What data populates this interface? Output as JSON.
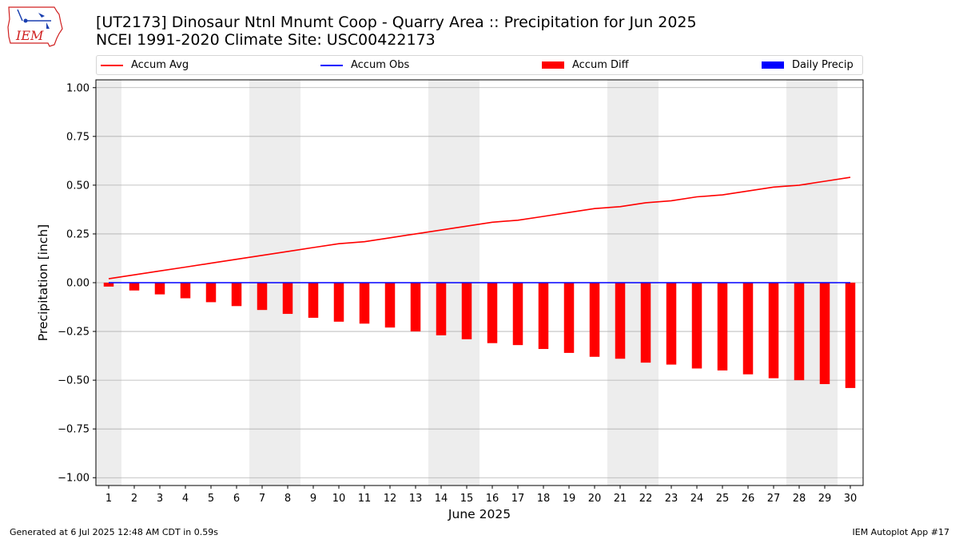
{
  "header": {
    "logo_text": "IEM",
    "title_line1": "[UT2173] Dinosaur Ntnl Mnumt Coop - Quarry Area :: Precipitation for Jun 2025",
    "title_line2": "NCEI 1991-2020 Climate Site: USC00422173"
  },
  "legend": {
    "items": [
      {
        "label": "Accum Avg",
        "kind": "line",
        "color": "#ff0000"
      },
      {
        "label": "Accum Obs",
        "kind": "line",
        "color": "#0000ff"
      },
      {
        "label": "Accum Diff",
        "kind": "patch",
        "color": "#ff0000"
      },
      {
        "label": "Daily Precip",
        "kind": "patch",
        "color": "#0000ff"
      }
    ],
    "placement": "top, above plot, horizontal"
  },
  "footer": {
    "left": "Generated at 6 Jul 2025 12:48 AM CDT in 0.59s",
    "right": "IEM Autoplot App #17"
  },
  "chart_data": {
    "type": "bar",
    "title": "[UT2173] Dinosaur Ntnl Mnumt Coop - Quarry Area :: Precipitation for Jun 2025",
    "subtitle": "NCEI 1991-2020 Climate Site: USC00422173",
    "xlabel": "June 2025",
    "ylabel": "Precipitation [inch]",
    "x": [
      1,
      2,
      3,
      4,
      5,
      6,
      7,
      8,
      9,
      10,
      11,
      12,
      13,
      14,
      15,
      16,
      17,
      18,
      19,
      20,
      21,
      22,
      23,
      24,
      25,
      26,
      27,
      28,
      29,
      30
    ],
    "ylim": [
      -1.04,
      1.04
    ],
    "yticks": [
      "1.00",
      "0.75",
      "0.50",
      "0.25",
      "0.00",
      "-0.25",
      "-0.50",
      "-0.75",
      "-1.00"
    ],
    "ytick_values": [
      1.0,
      0.75,
      0.5,
      0.25,
      0.0,
      -0.25,
      -0.5,
      -0.75,
      -1.0
    ],
    "grid": "horizontal",
    "weekend_shading": [
      [
        1,
        1
      ],
      [
        7,
        8
      ],
      [
        14,
        15
      ],
      [
        21,
        22
      ],
      [
        28,
        29
      ]
    ],
    "series": [
      {
        "name": "Accum Avg",
        "kind": "line",
        "color": "#ff0000",
        "values": [
          0.02,
          0.04,
          0.06,
          0.08,
          0.1,
          0.12,
          0.14,
          0.16,
          0.18,
          0.2,
          0.21,
          0.23,
          0.25,
          0.27,
          0.29,
          0.31,
          0.32,
          0.34,
          0.36,
          0.38,
          0.39,
          0.41,
          0.42,
          0.44,
          0.45,
          0.47,
          0.49,
          0.5,
          0.52,
          0.54
        ]
      },
      {
        "name": "Accum Obs",
        "kind": "line",
        "color": "#0000ff",
        "values": [
          0,
          0,
          0,
          0,
          0,
          0,
          0,
          0,
          0,
          0,
          0,
          0,
          0,
          0,
          0,
          0,
          0,
          0,
          0,
          0,
          0,
          0,
          0,
          0,
          0,
          0,
          0,
          0,
          0,
          0
        ]
      },
      {
        "name": "Accum Diff",
        "kind": "bar",
        "color": "#ff0000",
        "values": [
          -0.02,
          -0.04,
          -0.06,
          -0.08,
          -0.1,
          -0.12,
          -0.14,
          -0.16,
          -0.18,
          -0.2,
          -0.21,
          -0.23,
          -0.25,
          -0.27,
          -0.29,
          -0.31,
          -0.32,
          -0.34,
          -0.36,
          -0.38,
          -0.39,
          -0.41,
          -0.42,
          -0.44,
          -0.45,
          -0.47,
          -0.49,
          -0.5,
          -0.52,
          -0.54
        ]
      },
      {
        "name": "Daily Precip",
        "kind": "bar",
        "color": "#0000ff",
        "values": [
          0,
          0,
          0,
          0,
          0,
          0,
          0,
          0,
          0,
          0,
          0,
          0,
          0,
          0,
          0,
          0,
          0,
          0,
          0,
          0,
          0,
          0,
          0,
          0,
          0,
          0,
          0,
          0,
          0,
          0
        ]
      }
    ]
  }
}
